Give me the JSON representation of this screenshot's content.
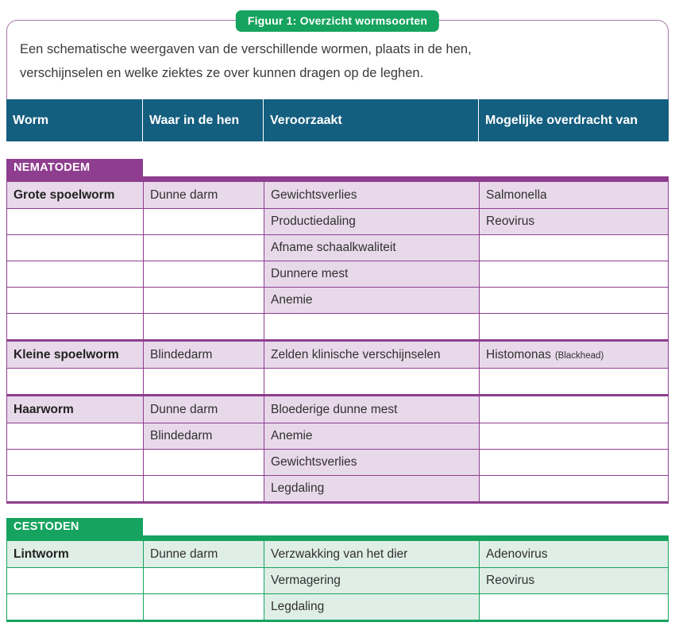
{
  "figure": {
    "badge_label": "Figuur 1: Overzicht wormsoorten",
    "intro_line1": "Een schematische weergaven van de verschillende wormen, plaats in de hen,",
    "intro_line2": "verschijnselen en welke ziektes ze over kunnen dragen op de leghen."
  },
  "header": {
    "columns": [
      "Worm",
      "Waar in de hen",
      "Veroorzaakt",
      "Mogelijke overdracht van"
    ]
  },
  "sections": [
    {
      "label": "NEMATODEM",
      "color": "#8e3d8f",
      "cell_bg": "#e8d9ea",
      "groups": [
        [
          [
            "Grote spoelworm",
            "Dunne darm",
            "Gewichtsverlies",
            "Salmonella"
          ],
          [
            "",
            "",
            "Productiedaling",
            "Reovirus"
          ],
          [
            "",
            "",
            "Afname schaalkwaliteit",
            ""
          ],
          [
            "",
            "",
            "Dunnere mest",
            ""
          ],
          [
            "",
            "",
            "Anemie",
            ""
          ],
          [
            "",
            "",
            "",
            ""
          ]
        ],
        [
          [
            "Kleine spoelworm",
            "Blindedarm",
            "Zelden klinische verschijnselen",
            {
              "text": "Histomonas",
              "suffix": "(Blackhead)"
            }
          ],
          [
            "",
            "",
            "",
            ""
          ]
        ],
        [
          [
            "Haarworm",
            "Dunne darm",
            "Bloederige dunne mest",
            ""
          ],
          [
            "",
            "Blindedarm",
            "Anemie",
            ""
          ],
          [
            "",
            "",
            "Gewichtsverlies",
            ""
          ],
          [
            "",
            "",
            "Legdaling",
            ""
          ]
        ]
      ]
    },
    {
      "label": "CESTODEN",
      "color": "#16a35f",
      "cell_bg": "#dfeee6",
      "groups": [
        [
          [
            "Lintworm",
            "Dunne darm",
            "Verzwakking van het dier",
            "Adenovirus"
          ],
          [
            "",
            "",
            "Vermagering",
            "Reovirus"
          ],
          [
            "",
            "",
            "Legdaling",
            ""
          ]
        ]
      ]
    }
  ],
  "colors": {
    "header_bg": "#145e7f",
    "badge_bg": "#16a35f",
    "box_border": "#a873aa",
    "text": "#3a3a3a"
  }
}
